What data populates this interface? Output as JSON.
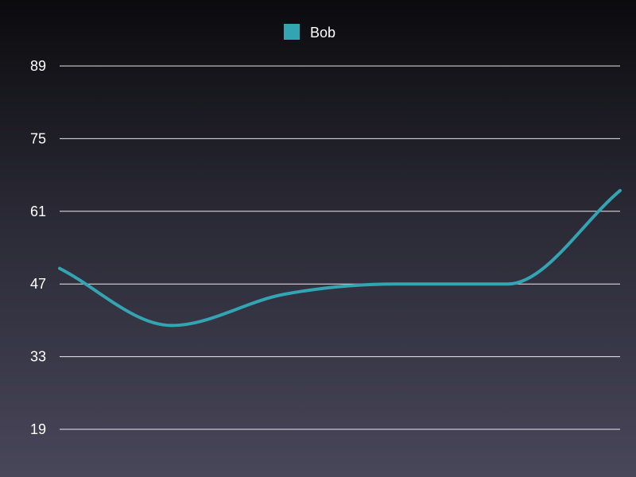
{
  "chart_data": {
    "type": "line",
    "legend_position": "top-center",
    "grid": true,
    "smooth": true,
    "ylim": [
      19,
      89
    ],
    "y_ticks": [
      19,
      33,
      47,
      61,
      75,
      89
    ],
    "x": [
      0,
      1,
      2,
      3,
      4,
      5
    ],
    "series": [
      {
        "name": "Bob",
        "color": "#33a4b2",
        "values": [
          50,
          39,
          45,
          47,
          47,
          65
        ]
      }
    ]
  }
}
